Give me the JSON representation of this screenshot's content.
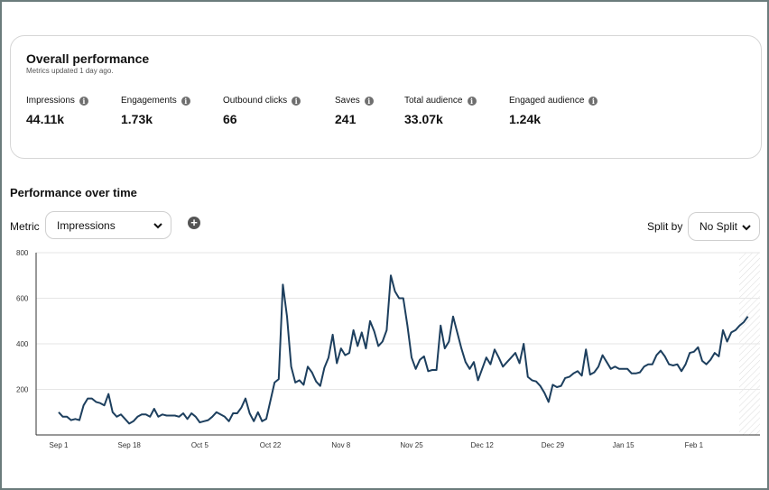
{
  "overview": {
    "title": "Overall performance",
    "subtitle": "Metrics updated 1 day ago.",
    "metrics": [
      {
        "label": "Impressions",
        "value": "44.11k"
      },
      {
        "label": "Engagements",
        "value": "1.73k"
      },
      {
        "label": "Outbound clicks",
        "value": "66"
      },
      {
        "label": "Saves",
        "value": "241"
      },
      {
        "label": "Total audience",
        "value": "33.07k"
      },
      {
        "label": "Engaged audience",
        "value": "1.24k"
      }
    ]
  },
  "performance": {
    "title": "Performance over time",
    "metric_label": "Metric",
    "metric_value": "Impressions",
    "split_label": "Split by",
    "split_value": "No Split"
  },
  "colors": {
    "line": "#1d3f5e",
    "grid": "#e6e6e6",
    "axis": "#333333"
  },
  "chart_data": {
    "type": "line",
    "title": "",
    "xlabel": "",
    "ylabel": "",
    "ylim": [
      0,
      800
    ],
    "yticks": [
      200,
      400,
      600,
      800
    ],
    "grid": true,
    "x_tick_labels": [
      "Sep 1",
      "Sep 18",
      "Oct 5",
      "Oct 22",
      "Nov 8",
      "Nov 25",
      "Dec 12",
      "Dec 29",
      "Jan 15",
      "Feb 1"
    ],
    "start_date": "2023-09-01",
    "series": [
      {
        "name": "",
        "values": [
          100,
          80,
          80,
          65,
          70,
          65,
          130,
          160,
          160,
          145,
          140,
          130,
          180,
          100,
          80,
          90,
          70,
          50,
          60,
          80,
          90,
          90,
          80,
          115,
          80,
          90,
          85,
          85,
          85,
          80,
          95,
          70,
          95,
          80,
          55,
          60,
          65,
          80,
          100,
          90,
          80,
          60,
          95,
          95,
          120,
          160,
          95,
          60,
          100,
          60,
          70,
          150,
          230,
          245,
          660,
          520,
          300,
          230,
          240,
          220,
          300,
          275,
          235,
          215,
          295,
          340,
          440,
          315,
          380,
          350,
          360,
          460,
          390,
          450,
          380,
          500,
          455,
          390,
          410,
          460,
          700,
          630,
          600,
          600,
          480,
          340,
          290,
          330,
          345,
          280,
          285,
          285,
          480,
          380,
          410,
          520,
          450,
          380,
          320,
          290,
          320,
          240,
          290,
          340,
          310,
          375,
          340,
          300,
          320,
          340,
          360,
          315,
          400,
          255,
          240,
          235,
          215,
          185,
          145,
          220,
          210,
          215,
          250,
          255,
          270,
          280,
          260,
          375,
          265,
          275,
          300,
          350,
          320,
          290,
          300,
          290,
          290,
          290,
          270,
          270,
          275,
          300,
          310,
          310,
          350,
          370,
          345,
          310,
          305,
          310,
          280,
          310,
          360,
          365,
          385,
          325,
          310,
          330,
          360,
          345,
          460,
          410,
          450,
          460,
          480,
          495,
          520
        ]
      }
    ]
  }
}
